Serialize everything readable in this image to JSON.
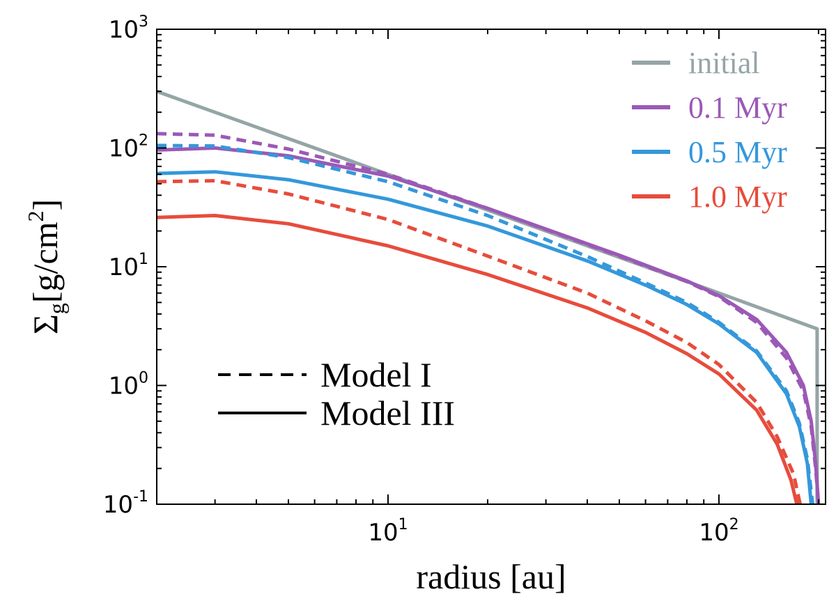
{
  "chart_data": {
    "type": "line",
    "xscale": "log",
    "yscale": "log",
    "xlim": [
      2,
      210
    ],
    "ylim": [
      0.1,
      1000
    ],
    "xlabel": "radius [au]",
    "ylabel": {
      "symbol": "Σ",
      "subscript": "g",
      "unit_open": "[g/cm",
      "unit_sup": "2",
      "unit_close": "]"
    },
    "x_ticks": [
      {
        "value": 10,
        "base": "10",
        "exp": "1"
      },
      {
        "value": 100,
        "base": "10",
        "exp": "2"
      }
    ],
    "y_ticks": [
      {
        "value": 0.1,
        "base": "10",
        "exp": "-1"
      },
      {
        "value": 1,
        "base": "10",
        "exp": "0"
      },
      {
        "value": 10,
        "base": "10",
        "exp": "1"
      },
      {
        "value": 100,
        "base": "10",
        "exp": "2"
      },
      {
        "value": 1000,
        "base": "10",
        "exp": "3"
      }
    ],
    "legend": {
      "location": "top-right",
      "entries": [
        {
          "label": "initial",
          "color": "#95a5a6"
        },
        {
          "label": "0.1 Myr",
          "color": "#9b59b6"
        },
        {
          "label": "0.5 Myr",
          "color": "#3498db"
        },
        {
          "label": "1.0 Myr",
          "color": "#e74c3c"
        }
      ]
    },
    "style_legend": {
      "location": "lower-left",
      "entries": [
        {
          "label": "Model I",
          "dash": "dashed"
        },
        {
          "label": "Model III",
          "dash": "solid"
        }
      ]
    },
    "series": [
      {
        "name": "initial",
        "model": "",
        "color": "#95a5a6",
        "dash": "solid",
        "points": [
          [
            2,
            300
          ],
          [
            10,
            60
          ],
          [
            100,
            6
          ],
          [
            198,
            3.0
          ],
          [
            198,
            0.1
          ]
        ]
      },
      {
        "name": "0.1 Myr",
        "model": "Model III",
        "color": "#9b59b6",
        "dash": "solid",
        "points": [
          [
            2,
            96
          ],
          [
            3,
            100
          ],
          [
            5,
            86
          ],
          [
            10,
            58
          ],
          [
            20,
            31
          ],
          [
            50,
            12.5
          ],
          [
            80,
            7.6
          ],
          [
            100,
            5.7
          ],
          [
            130,
            3.6
          ],
          [
            160,
            1.9
          ],
          [
            180,
            1.0
          ],
          [
            190,
            0.5
          ],
          [
            196,
            0.22
          ],
          [
            200,
            0.1
          ]
        ]
      },
      {
        "name": "0.1 Myr",
        "model": "Model I",
        "color": "#9b59b6",
        "dash": "dashed",
        "points": [
          [
            2,
            132
          ],
          [
            3,
            128
          ],
          [
            5,
            98
          ],
          [
            10,
            60
          ],
          [
            20,
            31
          ],
          [
            50,
            12.3
          ],
          [
            80,
            7.5
          ],
          [
            100,
            5.6
          ],
          [
            130,
            3.4
          ],
          [
            160,
            1.7
          ],
          [
            180,
            0.9
          ],
          [
            190,
            0.45
          ],
          [
            196,
            0.2
          ],
          [
            200,
            0.1
          ]
        ]
      },
      {
        "name": "0.5 Myr",
        "model": "Model III",
        "color": "#3498db",
        "dash": "solid",
        "points": [
          [
            2,
            61
          ],
          [
            3,
            63
          ],
          [
            5,
            54
          ],
          [
            10,
            37
          ],
          [
            20,
            22
          ],
          [
            40,
            11.2
          ],
          [
            60,
            7.0
          ],
          [
            80,
            4.8
          ],
          [
            100,
            3.3
          ],
          [
            130,
            1.9
          ],
          [
            160,
            0.85
          ],
          [
            175,
            0.45
          ],
          [
            185,
            0.22
          ],
          [
            190,
            0.1
          ]
        ]
      },
      {
        "name": "0.5 Myr",
        "model": "Model I",
        "color": "#3498db",
        "dash": "dashed",
        "points": [
          [
            2,
            105
          ],
          [
            3,
            104
          ],
          [
            5,
            83
          ],
          [
            10,
            52
          ],
          [
            20,
            27
          ],
          [
            40,
            12.2
          ],
          [
            60,
            7.3
          ],
          [
            80,
            5.0
          ],
          [
            100,
            3.4
          ],
          [
            130,
            1.95
          ],
          [
            160,
            0.9
          ],
          [
            175,
            0.48
          ],
          [
            185,
            0.24
          ],
          [
            192,
            0.1
          ]
        ]
      },
      {
        "name": "1.0 Myr",
        "model": "Model III",
        "color": "#e74c3c",
        "dash": "solid",
        "points": [
          [
            2,
            26
          ],
          [
            3,
            27
          ],
          [
            5,
            23
          ],
          [
            10,
            15
          ],
          [
            20,
            8.6
          ],
          [
            40,
            4.5
          ],
          [
            60,
            2.8
          ],
          [
            80,
            1.85
          ],
          [
            100,
            1.25
          ],
          [
            130,
            0.62
          ],
          [
            150,
            0.32
          ],
          [
            165,
            0.16
          ],
          [
            172,
            0.1
          ]
        ]
      },
      {
        "name": "1.0 Myr",
        "model": "Model I",
        "color": "#e74c3c",
        "dash": "dashed",
        "points": [
          [
            2,
            52
          ],
          [
            3,
            53
          ],
          [
            5,
            41
          ],
          [
            10,
            25
          ],
          [
            20,
            12.3
          ],
          [
            40,
            6.0
          ],
          [
            60,
            3.5
          ],
          [
            80,
            2.3
          ],
          [
            100,
            1.5
          ],
          [
            130,
            0.72
          ],
          [
            150,
            0.37
          ],
          [
            168,
            0.18
          ],
          [
            176,
            0.1
          ]
        ]
      }
    ]
  }
}
